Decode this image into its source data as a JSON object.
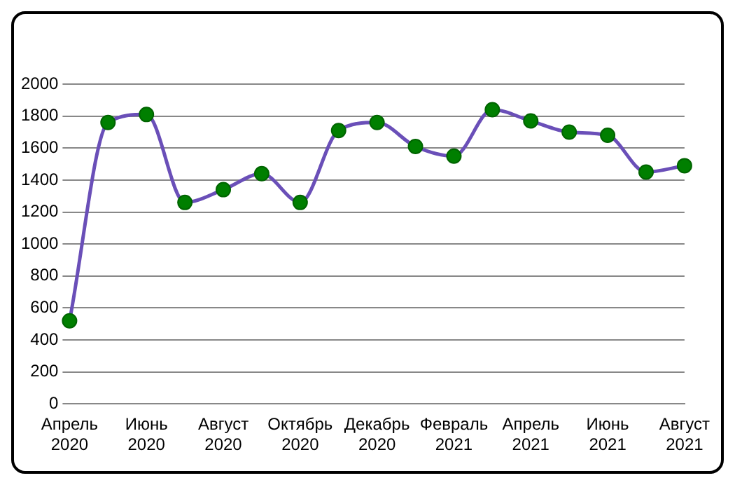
{
  "chart_data": {
    "type": "line",
    "categories": [
      "Апрель 2020",
      null,
      "Июнь 2020",
      null,
      "Август 2020",
      null,
      "Октябрь 2020",
      null,
      "Декабрь 2020",
      null,
      "Февраль 2021",
      null,
      "Апрель 2021",
      null,
      "Июнь 2021",
      null,
      "Август 2021"
    ],
    "series": [
      {
        "color": "#6a4fb8",
        "values": [
          520,
          1760,
          1810,
          1260,
          1340,
          1440,
          1260,
          1710,
          1760,
          1610,
          1550,
          1840,
          1770,
          1700,
          1680,
          1450,
          1490
        ]
      }
    ],
    "ylim": [
      0,
      2000
    ],
    "yticks": [
      0,
      200,
      400,
      600,
      800,
      1000,
      1200,
      1400,
      1600,
      1800,
      2000
    ],
    "grid": "y",
    "marker": "circle",
    "legend": false
  }
}
